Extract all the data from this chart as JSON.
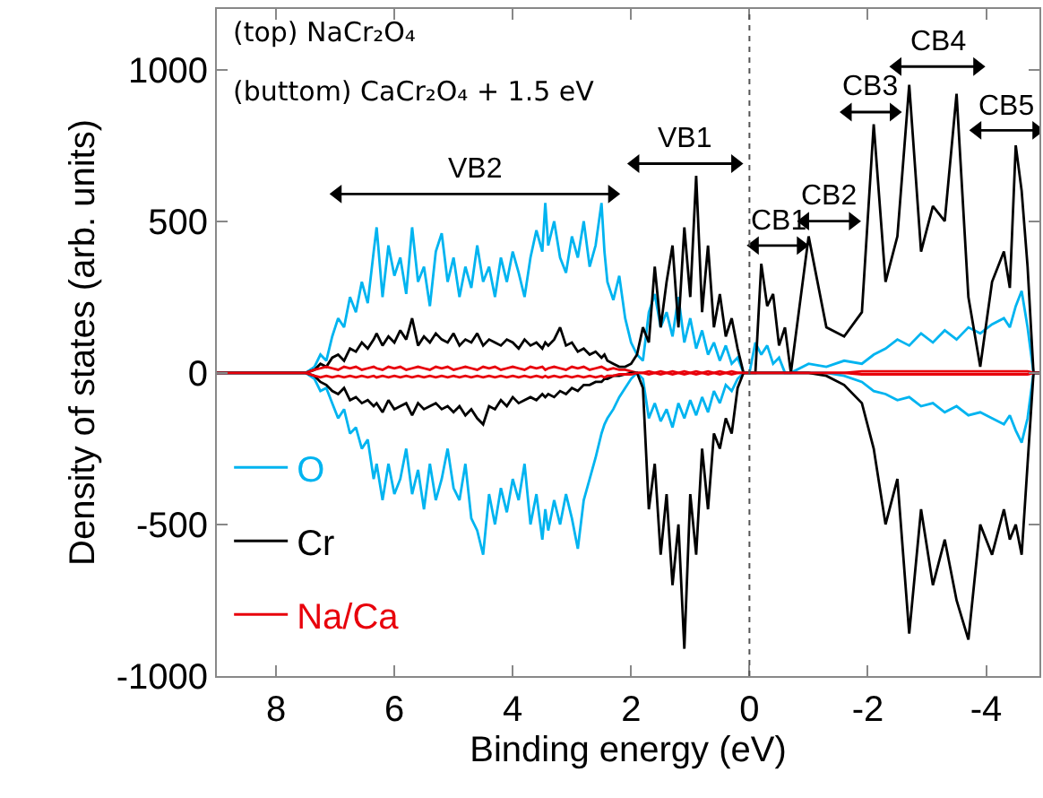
{
  "chart_data": {
    "type": "line",
    "xlabel": "Binding energy (eV)",
    "ylabel": "Density of states (arb. units)",
    "xlim": [
      9,
      -4.9
    ],
    "xticks": [
      8,
      6,
      4,
      2,
      0,
      -2,
      -4
    ],
    "ylim": [
      -1000,
      1200
    ],
    "yticks": [
      -1000,
      -500,
      0,
      500,
      1000
    ],
    "legend": "bottom left",
    "marker": "none",
    "line_style": "solid",
    "x": [
      9,
      7.5,
      7.35,
      7.25,
      7.15,
      7.05,
      6.95,
      6.85,
      6.75,
      6.65,
      6.55,
      6.45,
      6.35,
      6.3,
      6.2,
      6.1,
      6.0,
      5.9,
      5.8,
      5.7,
      5.6,
      5.5,
      5.4,
      5.3,
      5.2,
      5.1,
      5.0,
      4.9,
      4.8,
      4.7,
      4.6,
      4.5,
      4.4,
      4.3,
      4.2,
      4.1,
      4.0,
      3.9,
      3.8,
      3.7,
      3.6,
      3.5,
      3.45,
      3.4,
      3.3,
      3.2,
      3.1,
      3.0,
      2.9,
      2.8,
      2.7,
      2.6,
      2.5,
      2.45,
      2.4,
      2.3,
      2.2,
      2.1,
      2.0,
      1.9,
      1.8,
      1.7,
      1.6,
      1.5,
      1.4,
      1.3,
      1.2,
      1.1,
      1.0,
      0.9,
      0.8,
      0.7,
      0.6,
      0.5,
      0.4,
      0.3,
      0.2,
      0.1,
      0.0,
      -0.1,
      -0.2,
      -0.3,
      -0.4,
      -0.5,
      -0.6,
      -0.7,
      -1.0,
      -1.3,
      -1.6,
      -1.9,
      -2.1,
      -2.3,
      -2.5,
      -2.7,
      -2.9,
      -3.1,
      -3.3,
      -3.5,
      -3.7,
      -3.9,
      -4.1,
      -4.3,
      -4.4,
      -4.5,
      -4.6,
      -4.7,
      -4.8,
      -4.9
    ],
    "series": [
      {
        "name": "O",
        "color": "#00b4f0",
        "values": [
          0,
          0,
          20,
          60,
          40,
          120,
          180,
          150,
          250,
          200,
          300,
          230,
          400,
          480,
          250,
          420,
          320,
          380,
          260,
          480,
          300,
          350,
          220,
          400,
          460,
          300,
          380,
          250,
          350,
          280,
          420,
          300,
          350,
          250,
          380,
          300,
          400,
          330,
          250,
          380,
          470,
          400,
          560,
          420,
          500,
          380,
          330,
          450,
          380,
          500,
          350,
          420,
          560,
          400,
          300,
          240,
          320,
          180,
          100,
          60,
          40,
          200,
          260,
          150,
          200,
          120,
          250,
          100,
          180,
          80,
          140,
          60,
          100,
          40,
          90,
          30,
          50,
          0,
          0,
          100,
          60,
          90,
          30,
          50,
          0,
          0,
          30,
          20,
          40,
          30,
          60,
          80,
          110,
          90,
          130,
          100,
          140,
          110,
          150,
          130,
          160,
          180,
          150,
          220,
          270,
          150,
          0,
          0
        ]
      },
      {
        "name": "Cr",
        "color": "#000000",
        "values": [
          0,
          0,
          10,
          30,
          20,
          50,
          60,
          40,
          80,
          70,
          100,
          80,
          110,
          130,
          90,
          120,
          100,
          140,
          110,
          180,
          90,
          120,
          100,
          130,
          110,
          100,
          130,
          90,
          110,
          100,
          130,
          90,
          110,
          100,
          90,
          110,
          100,
          80,
          110,
          90,
          100,
          80,
          100,
          90,
          110,
          150,
          90,
          100,
          70,
          80,
          60,
          70,
          50,
          60,
          40,
          30,
          20,
          20,
          30,
          60,
          150,
          100,
          350,
          150,
          300,
          420,
          150,
          480,
          250,
          650,
          200,
          420,
          150,
          260,
          120,
          180,
          80,
          0,
          0,
          0,
          360,
          220,
          260,
          90,
          150,
          0,
          450,
          150,
          120,
          200,
          820,
          300,
          450,
          950,
          400,
          550,
          500,
          920,
          250,
          20,
          300,
          400,
          280,
          750,
          600,
          350,
          0,
          0
        ]
      },
      {
        "name": "Na/Ca",
        "color": "#e8000b",
        "values": [
          0,
          0,
          10,
          15,
          20,
          15,
          10,
          20,
          15,
          20,
          10,
          15,
          20,
          15,
          10,
          20,
          15,
          20,
          10,
          15,
          20,
          15,
          10,
          20,
          15,
          20,
          10,
          15,
          20,
          15,
          10,
          20,
          15,
          20,
          10,
          15,
          20,
          15,
          10,
          20,
          15,
          20,
          10,
          15,
          20,
          15,
          10,
          20,
          15,
          20,
          10,
          15,
          20,
          15,
          10,
          15,
          10,
          10,
          5,
          0,
          0,
          5,
          0,
          5,
          0,
          5,
          0,
          5,
          0,
          5,
          0,
          5,
          0,
          5,
          0,
          5,
          0,
          0,
          0,
          0,
          0,
          0,
          0,
          0,
          0,
          0,
          0,
          0,
          0,
          5,
          5,
          5,
          5,
          5,
          5,
          5,
          5,
          5,
          5,
          5,
          5,
          5,
          5,
          5,
          5,
          5,
          0,
          0
        ]
      },
      {
        "color": "#00b4f0",
        "values": [
          0,
          0,
          -20,
          -60,
          -50,
          -100,
          -150,
          -120,
          -200,
          -180,
          -250,
          -220,
          -350,
          -300,
          -420,
          -300,
          -400,
          -350,
          -250,
          -400,
          -320,
          -450,
          -300,
          -420,
          -350,
          -250,
          -380,
          -420,
          -300,
          -480,
          -520,
          -600,
          -400,
          -500,
          -380,
          -460,
          -350,
          -420,
          -300,
          -500,
          -400,
          -550,
          -450,
          -520,
          -420,
          -500,
          -400,
          -480,
          -580,
          -420,
          -350,
          -280,
          -200,
          -170,
          -150,
          -120,
          -80,
          -50,
          -20,
          0,
          -20,
          -150,
          -100,
          -160,
          -120,
          -180,
          -100,
          -150,
          -90,
          -140,
          -80,
          -130,
          -60,
          -100,
          -40,
          -60,
          -20,
          0,
          0,
          0,
          0,
          0,
          0,
          0,
          0,
          0,
          0,
          0,
          -10,
          -30,
          -60,
          -70,
          -90,
          -80,
          -110,
          -100,
          -130,
          -110,
          -140,
          -130,
          -150,
          -170,
          -140,
          -190,
          -230,
          -150,
          0,
          0
        ]
      },
      {
        "color": "#000000",
        "values": [
          0,
          0,
          -10,
          -30,
          -40,
          -60,
          -70,
          -50,
          -90,
          -80,
          -100,
          -90,
          -110,
          -100,
          -130,
          -90,
          -120,
          -110,
          -100,
          -140,
          -100,
          -120,
          -110,
          -100,
          -120,
          -110,
          -130,
          -110,
          -140,
          -120,
          -150,
          -170,
          -110,
          -120,
          -90,
          -110,
          -80,
          -100,
          -90,
          -80,
          -90,
          -70,
          -80,
          -70,
          -80,
          -60,
          -70,
          -50,
          -60,
          -40,
          -40,
          -30,
          -30,
          -20,
          -20,
          -10,
          -10,
          -5,
          0,
          0,
          -50,
          -450,
          -300,
          -600,
          -400,
          -700,
          -500,
          -910,
          -400,
          -600,
          -250,
          -450,
          -200,
          -250,
          -150,
          -200,
          -50,
          0,
          0,
          0,
          0,
          0,
          0,
          0,
          0,
          0,
          0,
          -10,
          -40,
          -100,
          -250,
          -500,
          -350,
          -860,
          -450,
          -700,
          -550,
          -750,
          -880,
          -500,
          -600,
          -450,
          -550,
          -500,
          -600,
          -300,
          0,
          0
        ]
      },
      {
        "color": "#e8000b",
        "values": [
          0,
          0,
          -10,
          -15,
          -10,
          -15,
          -10,
          -15,
          -10,
          -15,
          -10,
          -15,
          -10,
          -15,
          -10,
          -15,
          -10,
          -15,
          -10,
          -15,
          -10,
          -15,
          -10,
          -15,
          -10,
          -15,
          -10,
          -15,
          -10,
          -15,
          -10,
          -15,
          -10,
          -15,
          -10,
          -15,
          -10,
          -15,
          -10,
          -15,
          -10,
          -15,
          -10,
          -15,
          -10,
          -15,
          -10,
          -15,
          -10,
          -15,
          -10,
          -15,
          -10,
          -15,
          -10,
          -10,
          -5,
          -5,
          -5,
          0,
          0,
          -5,
          0,
          -5,
          0,
          -5,
          0,
          -5,
          0,
          -5,
          0,
          -5,
          0,
          -5,
          0,
          -5,
          0,
          0,
          0,
          0,
          0,
          0,
          0,
          0,
          0,
          0,
          0,
          0,
          0,
          -5,
          -5,
          -5,
          -5,
          -5,
          -5,
          -5,
          -5,
          -5,
          -5,
          -5,
          -5,
          -5,
          -5,
          -5,
          -5,
          -5,
          0,
          0
        ]
      },
      {
        "name": "VB2",
        "color": "#000000",
        "marker": "triangle",
        "x": [
          6.96,
          2.32
        ],
        "values": [
          590,
          590
        ]
      },
      {
        "name": "VB1",
        "color": "#000000",
        "marker": "triangle",
        "x": [
          1.93,
          0.24
        ],
        "values": [
          690,
          690
        ]
      },
      {
        "name": "CB1",
        "color": "#000000",
        "marker": "triangle",
        "x": [
          -0.09,
          -0.87
        ],
        "values": [
          420,
          420
        ]
      },
      {
        "name": "CB2",
        "color": "#000000",
        "marker": "triangle",
        "x": [
          -0.94,
          -1.75
        ],
        "values": [
          500,
          500
        ]
      },
      {
        "name": "CB3",
        "color": "#000000",
        "marker": "triangle",
        "x": [
          -1.66,
          -2.44
        ],
        "values": [
          860,
          860
        ]
      },
      {
        "name": "CB4",
        "color": "#000000",
        "marker": "triangle",
        "x": [
          -2.5,
          -3.85
        ],
        "values": [
          1010,
          1010
        ]
      },
      {
        "name": "CB5",
        "color": "#000000",
        "marker": "triangle",
        "x": [
          -3.85,
          -4.85
        ],
        "values": [
          800,
          800
        ]
      }
    ],
    "ref_lines": [
      {
        "axis": "x",
        "value": 0,
        "color": "#555555",
        "line_style": "dotted"
      }
    ],
    "annotations": [
      "(top) NaCr₂O₄",
      "(buttom) CaCr₂O₄ + 1.5 eV"
    ]
  }
}
